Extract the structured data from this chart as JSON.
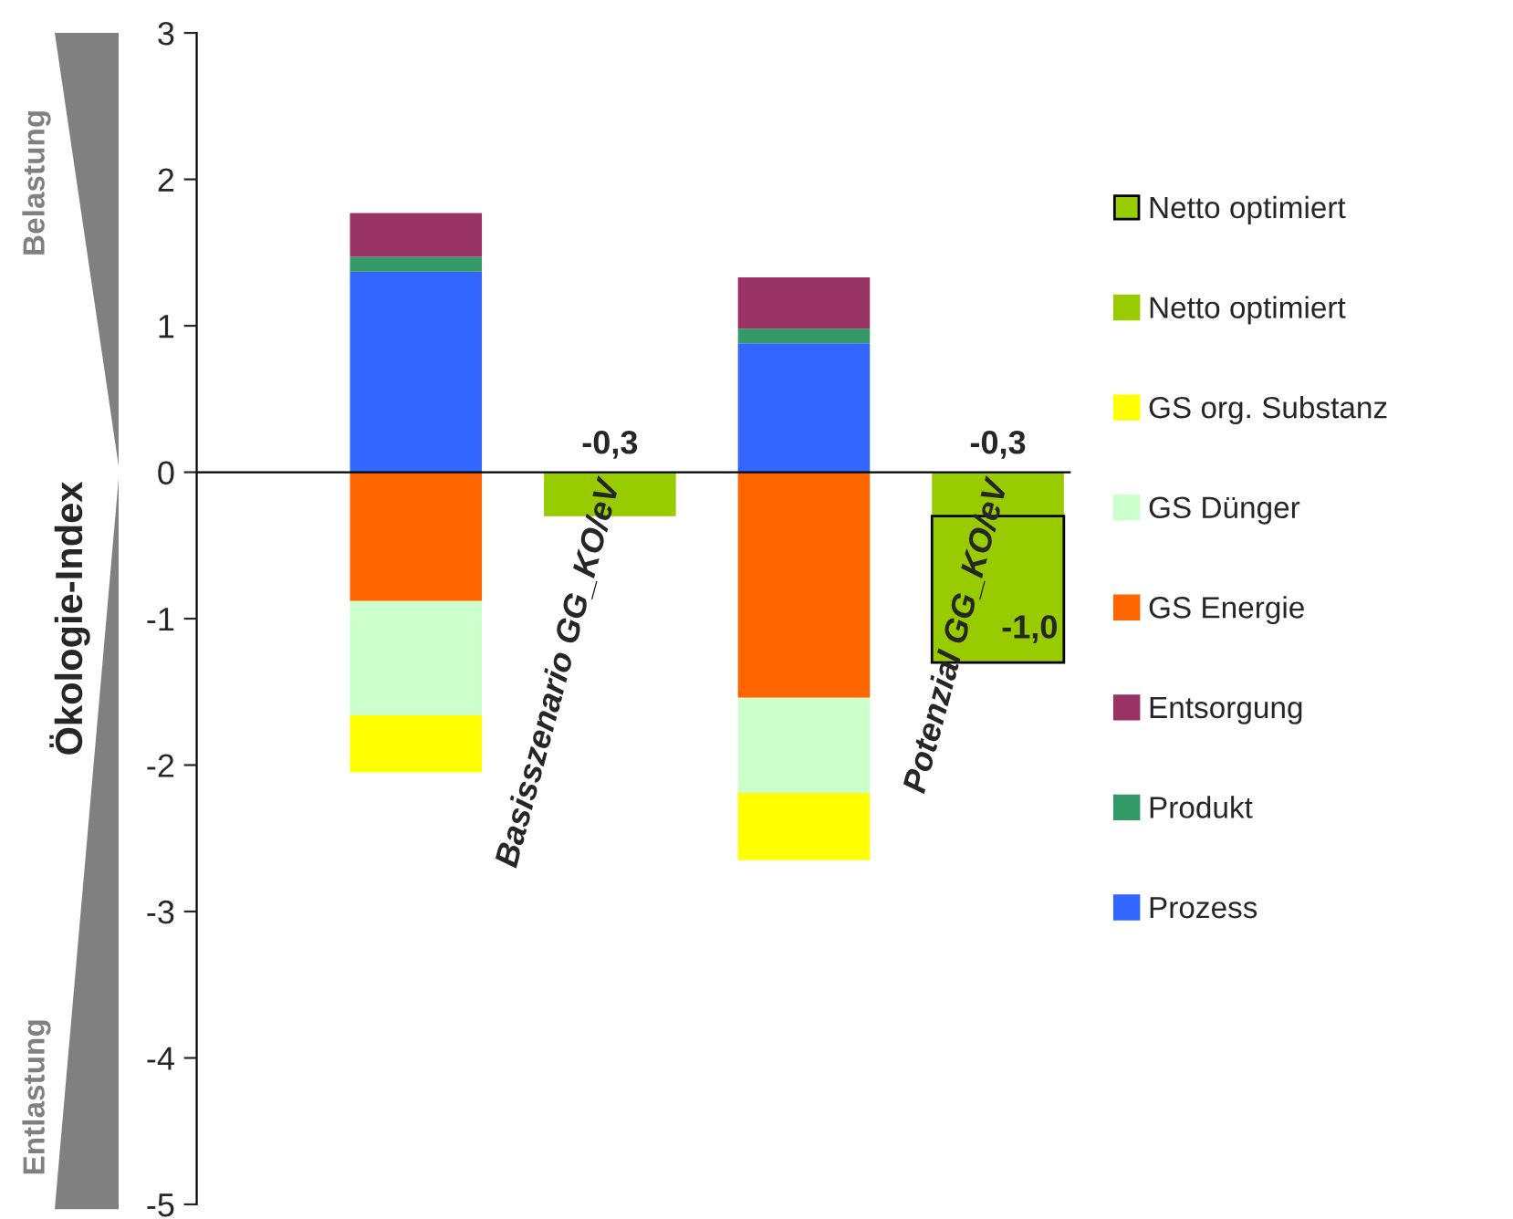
{
  "chart_data": {
    "type": "bar",
    "ylabel": "Ökologie-Index",
    "categories": [
      null,
      "Basisszenario GG_KO/eV",
      null,
      "Potenzial GG_KO/eV"
    ],
    "stacked": true,
    "series": [
      {
        "name": "Prozess",
        "color": "#3366ff",
        "values": [
          1.37,
          null,
          0.88,
          null
        ]
      },
      {
        "name": "Produkt",
        "color": "#339966",
        "values": [
          0.1,
          null,
          0.1,
          null
        ]
      },
      {
        "name": "Entsorgung",
        "color": "#993366",
        "values": [
          0.3,
          null,
          0.35,
          null
        ]
      },
      {
        "name": "GS Energie",
        "color": "#ff6600",
        "values": [
          -0.88,
          null,
          -1.54,
          null
        ]
      },
      {
        "name": "GS Dünger",
        "color": "#ccffcc",
        "values": [
          -0.78,
          null,
          -0.65,
          null
        ]
      },
      {
        "name": "GS org. Substanz",
        "color": "#ffff00",
        "values": [
          -0.39,
          null,
          -0.46,
          null
        ]
      },
      {
        "name": "Netto optimiert",
        "color": "#99cc00",
        "values": [
          null,
          -0.3,
          null,
          -0.3
        ],
        "value_labels": [
          null,
          "-0,3",
          null,
          "-0,3"
        ]
      },
      {
        "name": "Netto optimiert",
        "color": "#99cc00",
        "values": [
          null,
          null,
          null,
          -1.0
        ],
        "value_labels": [
          null,
          null,
          null,
          "-1,0"
        ]
      }
    ],
    "ylim": [
      -5,
      3
    ],
    "yticks": [
      -5,
      -4,
      -3,
      -2,
      -1,
      0,
      1,
      2,
      3
    ],
    "grid": false,
    "legend": "right",
    "annotations": [
      "Belastung",
      "Entlastung"
    ]
  }
}
